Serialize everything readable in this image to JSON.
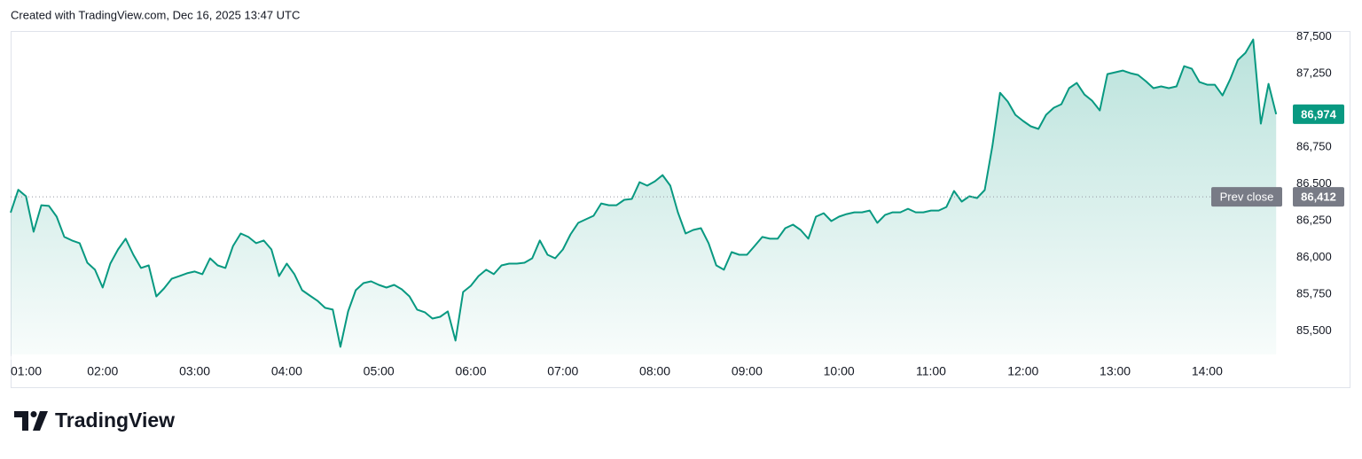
{
  "header": "Created with TradingView.com, Dec 16, 2025 13:47 UTC",
  "brand": "TradingView",
  "chart_data": {
    "type": "line",
    "x": [
      "01:00",
      "01:05",
      "01:10",
      "01:15",
      "01:20",
      "01:25",
      "01:30",
      "01:35",
      "01:40",
      "01:45",
      "01:50",
      "01:55",
      "02:00",
      "02:05",
      "02:10",
      "02:15",
      "02:20",
      "02:25",
      "02:30",
      "02:35",
      "02:40",
      "02:45",
      "02:50",
      "02:55",
      "03:00",
      "03:05",
      "03:10",
      "03:15",
      "03:20",
      "03:25",
      "03:30",
      "03:35",
      "03:40",
      "03:45",
      "03:50",
      "03:55",
      "04:00",
      "04:05",
      "04:10",
      "04:15",
      "04:20",
      "04:25",
      "04:30",
      "04:35",
      "04:40",
      "04:45",
      "04:50",
      "04:55",
      "05:00",
      "05:05",
      "05:10",
      "05:15",
      "05:20",
      "05:25",
      "05:30",
      "05:35",
      "05:40",
      "05:45",
      "05:50",
      "05:55",
      "06:00",
      "06:05",
      "06:10",
      "06:15",
      "06:20",
      "06:25",
      "06:30",
      "06:35",
      "06:40",
      "06:45",
      "06:50",
      "06:55",
      "07:00",
      "07:05",
      "07:10",
      "07:15",
      "07:20",
      "07:25",
      "07:30",
      "07:35",
      "07:40",
      "07:45",
      "07:50",
      "07:55",
      "08:00",
      "08:05",
      "08:10",
      "08:15",
      "08:20",
      "08:25",
      "08:30",
      "08:35",
      "08:40",
      "08:45",
      "08:50",
      "08:55",
      "09:00",
      "09:05",
      "09:10",
      "09:15",
      "09:20",
      "09:25",
      "09:30",
      "09:35",
      "09:40",
      "09:45",
      "09:50",
      "09:55",
      "10:00",
      "10:05",
      "10:10",
      "10:15",
      "10:20",
      "10:25",
      "10:30",
      "10:35",
      "10:40",
      "10:45",
      "10:50",
      "10:55",
      "11:00",
      "11:05",
      "11:10",
      "11:15",
      "11:20",
      "11:25",
      "11:30",
      "11:35",
      "11:40",
      "11:45",
      "11:50",
      "11:55",
      "12:00",
      "12:05",
      "12:10",
      "12:15",
      "12:20",
      "12:25",
      "12:30",
      "12:35",
      "12:40",
      "12:45",
      "12:50",
      "12:55",
      "13:00",
      "13:05",
      "13:10",
      "13:15",
      "13:20",
      "13:25",
      "13:30",
      "13:35",
      "13:40",
      "13:45",
      "13:50",
      "13:55",
      "14:00",
      "14:05",
      "14:10",
      "14:15",
      "14:20",
      "14:25",
      "14:30",
      "14:35",
      "14:40",
      "14:45"
    ],
    "series": [
      {
        "color": "#089981",
        "values": [
          86305,
          86460,
          86416,
          86175,
          86355,
          86350,
          86277,
          86140,
          86115,
          86097,
          85964,
          85916,
          85795,
          85958,
          86054,
          86127,
          86018,
          85928,
          85946,
          85735,
          85789,
          85855,
          85873,
          85892,
          85904,
          85886,
          85994,
          85946,
          85928,
          86078,
          86163,
          86139,
          86097,
          86115,
          86054,
          85873,
          85958,
          85886,
          85777,
          85741,
          85705,
          85657,
          85645,
          85392,
          85633,
          85777,
          85825,
          85837,
          85813,
          85795,
          85813,
          85783,
          85735,
          85645,
          85627,
          85584,
          85596,
          85633,
          85434,
          85765,
          85807,
          85873,
          85916,
          85886,
          85946,
          85958,
          85958,
          85964,
          85994,
          86115,
          86018,
          85994,
          86054,
          86157,
          86235,
          86259,
          86283,
          86367,
          86355,
          86355,
          86392,
          86398,
          86512,
          86488,
          86518,
          86560,
          86488,
          86307,
          86163,
          86187,
          86199,
          86097,
          85946,
          85916,
          86036,
          86018,
          86018,
          86078,
          86139,
          86127,
          86127,
          86199,
          86223,
          86187,
          86127,
          86277,
          86301,
          86247,
          86277,
          86295,
          86307,
          86307,
          86319,
          86235,
          86289,
          86307,
          86307,
          86331,
          86307,
          86307,
          86319,
          86319,
          86343,
          86452,
          86380,
          86416,
          86404,
          86458,
          86759,
          87120,
          87060,
          86970,
          86928,
          86892,
          86874,
          86970,
          87018,
          87042,
          87151,
          87187,
          87108,
          87066,
          87000,
          87247,
          87259,
          87271,
          87253,
          87241,
          87199,
          87151,
          87163,
          87151,
          87163,
          87301,
          87283,
          87193,
          87175,
          87175,
          87102,
          87211,
          87343,
          87392,
          87482,
          86910,
          87181,
          86974
        ]
      }
    ],
    "xlim": [
      "01:00",
      "14:48"
    ],
    "xticks": [
      "01:00",
      "02:00",
      "03:00",
      "04:00",
      "05:00",
      "06:00",
      "07:00",
      "08:00",
      "09:00",
      "10:00",
      "11:00",
      "12:00",
      "13:00",
      "14:00"
    ],
    "ylim": [
      85340,
      87540
    ],
    "yticks": [
      {
        "value": 85500,
        "label": "85,500"
      },
      {
        "value": 85750,
        "label": "85,750"
      },
      {
        "value": 86000,
        "label": "86,000"
      },
      {
        "value": 86250,
        "label": "86,250"
      },
      {
        "value": 86500,
        "label": "86,500"
      },
      {
        "value": 86750,
        "label": "86,750"
      },
      {
        "value": 87250,
        "label": "87,250"
      },
      {
        "value": 87500,
        "label": "87,500"
      }
    ],
    "last_price": {
      "value": 86974,
      "label": "86,974"
    },
    "prev_close_title": "Prev close",
    "prev_close": {
      "value": 86412,
      "label": "86,412"
    }
  }
}
